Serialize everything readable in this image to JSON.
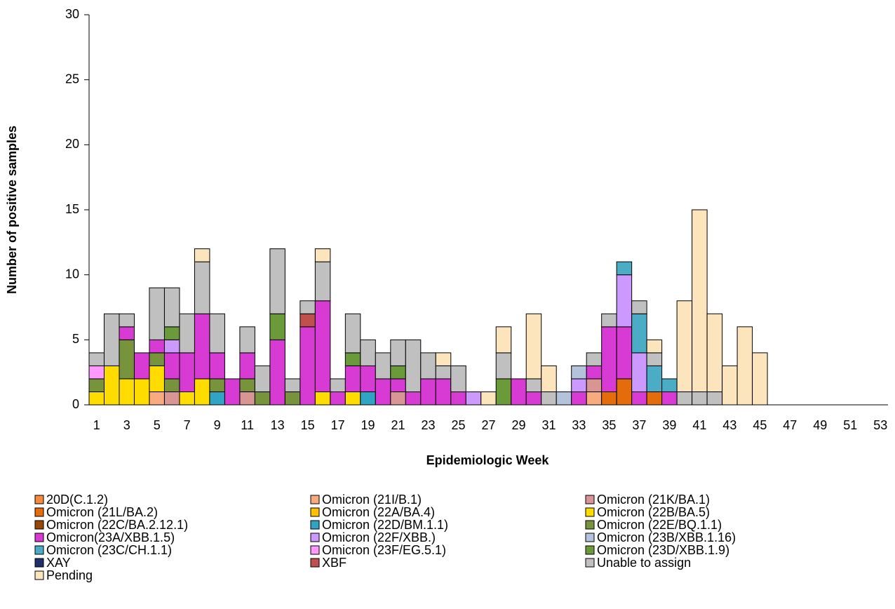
{
  "chart_data": {
    "type": "stacked_bar",
    "x_label": "Epidemiologic Week",
    "y_label": "Number of positive samples",
    "categories": [
      1,
      null,
      3,
      null,
      5,
      null,
      7,
      null,
      9,
      null,
      11,
      null,
      13,
      null,
      15,
      null,
      17,
      null,
      19,
      null,
      21,
      null,
      23,
      null,
      25,
      null,
      27,
      null,
      29,
      null,
      31,
      null,
      33,
      null,
      35,
      null,
      37,
      null,
      39,
      null,
      41,
      null,
      43,
      null,
      45,
      null,
      47,
      null,
      49,
      null,
      51,
      null,
      53
    ],
    "ylim": [
      0,
      30
    ],
    "yticks": [
      0,
      5,
      10,
      15,
      20,
      25,
      30
    ],
    "legend": "bottom",
    "series": [
      {
        "name": "20D(C.1.2)",
        "color": "#f58a3c",
        "values": [
          0,
          0,
          0,
          0,
          0,
          0,
          0,
          0,
          0,
          0,
          0,
          0,
          0,
          0,
          0,
          0,
          0,
          0,
          0,
          0,
          0,
          0,
          0,
          0,
          0,
          0,
          0,
          0,
          0,
          0,
          0,
          0,
          0,
          0,
          0,
          0,
          0,
          0,
          0,
          0,
          0,
          0,
          0,
          0,
          0,
          0,
          0,
          0,
          0,
          0,
          0,
          0,
          0
        ]
      },
      {
        "name": "Omicron (21I/B.1)",
        "color": "#f7ab7e",
        "values": [
          0,
          0,
          0,
          0,
          1,
          0,
          0,
          0,
          0,
          0,
          0,
          0,
          0,
          0,
          0,
          0,
          0,
          0,
          0,
          0,
          0,
          0,
          0,
          0,
          0,
          0,
          0,
          0,
          0,
          0,
          0,
          0,
          0,
          1,
          0,
          0,
          0,
          0,
          0,
          0,
          0,
          0,
          0,
          0,
          0,
          0,
          0,
          0,
          0,
          0,
          0,
          0,
          0
        ]
      },
      {
        "name": "Omicron (21K/BA.1)",
        "color": "#d99594",
        "values": [
          0,
          0,
          0,
          0,
          0,
          1,
          0,
          0,
          0,
          0,
          1,
          0,
          0,
          0,
          0,
          0,
          0,
          0,
          0,
          0,
          1,
          0,
          0,
          0,
          0,
          0,
          0,
          0,
          0,
          0,
          0,
          0,
          0,
          1,
          0,
          0,
          0,
          0,
          0,
          0,
          0,
          0,
          0,
          0,
          0,
          0,
          0,
          0,
          0,
          0,
          0,
          0,
          0
        ]
      },
      {
        "name": "Omicron (21L/BA.2)",
        "color": "#e46c0a",
        "values": [
          0,
          0,
          0,
          0,
          0,
          0,
          0,
          0,
          0,
          0,
          0,
          0,
          0,
          0,
          0,
          0,
          0,
          0,
          0,
          0,
          0,
          0,
          0,
          0,
          0,
          0,
          0,
          0,
          0,
          0,
          0,
          0,
          0,
          0,
          1,
          2,
          0,
          1,
          0,
          0,
          0,
          0,
          0,
          0,
          0,
          0,
          0,
          0,
          0,
          0,
          0,
          0,
          0
        ]
      },
      {
        "name": "Omicron (22A/BA.4)",
        "color": "#ffc000",
        "values": [
          0,
          0,
          0,
          0,
          0,
          0,
          0,
          0,
          0,
          0,
          0,
          0,
          0,
          0,
          0,
          0,
          0,
          0,
          0,
          0,
          0,
          0,
          0,
          0,
          0,
          0,
          0,
          0,
          0,
          0,
          0,
          0,
          0,
          0,
          0,
          0,
          0,
          0,
          0,
          0,
          0,
          0,
          0,
          0,
          0,
          0,
          0,
          0,
          0,
          0,
          0,
          0,
          0
        ]
      },
      {
        "name": "Omicron (22B/BA.5)",
        "color": "#ffdc00",
        "values": [
          1,
          3,
          2,
          2,
          2,
          0,
          1,
          2,
          0,
          0,
          0,
          0,
          0,
          0,
          0,
          1,
          0,
          1,
          0,
          0,
          0,
          0,
          0,
          0,
          0,
          0,
          0,
          0,
          0,
          0,
          0,
          0,
          0,
          0,
          0,
          0,
          0,
          0,
          0,
          0,
          0,
          0,
          0,
          0,
          0,
          0,
          0,
          0,
          0,
          0,
          0,
          0,
          0
        ]
      },
      {
        "name": "Omicron (22C/BA.2.12.1)",
        "color": "#974706",
        "values": [
          0,
          0,
          0,
          0,
          0,
          0,
          0,
          0,
          0,
          0,
          0,
          0,
          0,
          0,
          0,
          0,
          0,
          0,
          0,
          0,
          0,
          0,
          0,
          0,
          0,
          0,
          0,
          0,
          0,
          0,
          0,
          0,
          0,
          0,
          0,
          0,
          0,
          0,
          0,
          0,
          0,
          0,
          0,
          0,
          0,
          0,
          0,
          0,
          0,
          0,
          0,
          0,
          0
        ]
      },
      {
        "name": "Omicron (22D/BM.1.1)",
        "color": "#31a3c4",
        "values": [
          0,
          0,
          0,
          0,
          0,
          0,
          0,
          0,
          1,
          0,
          0,
          0,
          0,
          0,
          0,
          0,
          0,
          0,
          1,
          0,
          0,
          0,
          0,
          0,
          0,
          0,
          0,
          0,
          0,
          0,
          0,
          0,
          0,
          0,
          0,
          0,
          0,
          0,
          0,
          0,
          0,
          0,
          0,
          0,
          0,
          0,
          0,
          0,
          0,
          0,
          0,
          0,
          0
        ]
      },
      {
        "name": "Omicron (22E/BQ.1.1)",
        "color": "#77933c",
        "values": [
          1,
          0,
          3,
          0,
          1,
          1,
          0,
          0,
          1,
          0,
          1,
          1,
          0,
          1,
          0,
          0,
          0,
          0,
          0,
          0,
          0,
          0,
          0,
          0,
          0,
          0,
          0,
          0,
          0,
          0,
          0,
          0,
          0,
          0,
          0,
          0,
          0,
          0,
          0,
          0,
          0,
          0,
          0,
          0,
          0,
          0,
          0,
          0,
          0,
          0,
          0,
          0,
          0
        ]
      },
      {
        "name": "Omicron(23A/XBB.1.5)",
        "color": "#d73bd3",
        "values": [
          0,
          0,
          1,
          2,
          1,
          2,
          3,
          5,
          2,
          2,
          2,
          0,
          5,
          0,
          6,
          7,
          1,
          2,
          2,
          2,
          1,
          1,
          2,
          2,
          1,
          0,
          0,
          0,
          2,
          1,
          0,
          0,
          1,
          1,
          5,
          4,
          1,
          0,
          1,
          0,
          0,
          0,
          0,
          0,
          0,
          0,
          0,
          0,
          0,
          0,
          0,
          0,
          0
        ]
      },
      {
        "name": "Omicron (22F/XBB.)",
        "color": "#cc99ff",
        "values": [
          0,
          0,
          0,
          0,
          0,
          1,
          0,
          0,
          0,
          0,
          0,
          0,
          0,
          0,
          0,
          0,
          0,
          0,
          0,
          0,
          0,
          0,
          0,
          0,
          0,
          1,
          0,
          0,
          0,
          0,
          0,
          0,
          1,
          0,
          0,
          4,
          3,
          0,
          0,
          0,
          0,
          0,
          0,
          0,
          0,
          0,
          0,
          0,
          0,
          0,
          0,
          0,
          0
        ]
      },
      {
        "name": "Omicron (23B/XBB.1.16)",
        "color": "#b4c3dc",
        "values": [
          0,
          0,
          0,
          0,
          0,
          0,
          0,
          0,
          0,
          0,
          0,
          0,
          0,
          0,
          0,
          0,
          0,
          0,
          0,
          0,
          0,
          0,
          0,
          0,
          0,
          0,
          0,
          0,
          0,
          0,
          0,
          1,
          1,
          0,
          0,
          0,
          0,
          0,
          0,
          0,
          0,
          0,
          0,
          0,
          0,
          0,
          0,
          0,
          0,
          0,
          0,
          0,
          0
        ]
      },
      {
        "name": "Omicron (23C/CH.1.1)",
        "color": "#4bacc6",
        "values": [
          0,
          0,
          0,
          0,
          0,
          0,
          0,
          0,
          0,
          0,
          0,
          0,
          0,
          0,
          0,
          0,
          0,
          0,
          0,
          0,
          0,
          0,
          0,
          0,
          0,
          0,
          0,
          0,
          0,
          0,
          0,
          0,
          0,
          0,
          0,
          1,
          3,
          2,
          1,
          0,
          0,
          0,
          0,
          0,
          0,
          0,
          0,
          0,
          0,
          0,
          0,
          0,
          0
        ]
      },
      {
        "name": "Omicron (23F/EG.5.1)",
        "color": "#ff99ff",
        "values": [
          1,
          0,
          0,
          0,
          0,
          0,
          0,
          0,
          0,
          0,
          0,
          0,
          0,
          0,
          0,
          0,
          0,
          0,
          0,
          0,
          0,
          0,
          0,
          0,
          0,
          0,
          0,
          0,
          0,
          0,
          0,
          0,
          0,
          0,
          0,
          0,
          0,
          0,
          0,
          0,
          0,
          0,
          0,
          0,
          0,
          0,
          0,
          0,
          0,
          0,
          0,
          0,
          0
        ]
      },
      {
        "name": "Omicron (23D/XBB.1.9)",
        "color": "#6a9a3a",
        "values": [
          0,
          0,
          0,
          0,
          0,
          1,
          0,
          0,
          0,
          0,
          0,
          0,
          2,
          0,
          0,
          0,
          0,
          1,
          0,
          0,
          1,
          0,
          0,
          0,
          0,
          0,
          0,
          2,
          0,
          0,
          0,
          0,
          0,
          0,
          0,
          0,
          0,
          0,
          0,
          0,
          0,
          0,
          0,
          0,
          0,
          0,
          0,
          0,
          0,
          0,
          0,
          0,
          0
        ]
      },
      {
        "name": "XAY",
        "color": "#1f2f6b",
        "values": [
          0,
          0,
          0,
          0,
          0,
          0,
          0,
          0,
          0,
          0,
          0,
          0,
          0,
          0,
          0,
          0,
          0,
          0,
          0,
          0,
          0,
          0,
          0,
          0,
          0,
          0,
          0,
          0,
          0,
          0,
          0,
          0,
          0,
          0,
          0,
          0,
          0,
          0,
          0,
          0,
          0,
          0,
          0,
          0,
          0,
          0,
          0,
          0,
          0,
          0,
          0,
          0,
          0
        ]
      },
      {
        "name": "XBF",
        "color": "#c0504d",
        "values": [
          0,
          0,
          0,
          0,
          0,
          0,
          0,
          0,
          0,
          0,
          0,
          0,
          0,
          0,
          1,
          0,
          0,
          0,
          0,
          0,
          0,
          0,
          0,
          0,
          0,
          0,
          0,
          0,
          0,
          0,
          0,
          0,
          0,
          0,
          0,
          0,
          0,
          0,
          0,
          0,
          0,
          0,
          0,
          0,
          0,
          0,
          0,
          0,
          0,
          0,
          0,
          0,
          0
        ]
      },
      {
        "name": "Unable to assign",
        "color": "#c0c0c0",
        "values": [
          1,
          4,
          1,
          0,
          4,
          3,
          3,
          4,
          3,
          0,
          2,
          2,
          5,
          1,
          1,
          3,
          1,
          3,
          2,
          2,
          2,
          4,
          2,
          1,
          2,
          0,
          0,
          2,
          0,
          1,
          1,
          0,
          0,
          1,
          1,
          0,
          1,
          1,
          0,
          1,
          1,
          1,
          0,
          0,
          0,
          0,
          0,
          0,
          0,
          0,
          0,
          0,
          0
        ]
      },
      {
        "name": "Pending",
        "color": "#fce4bd",
        "values": [
          0,
          0,
          0,
          0,
          0,
          0,
          0,
          1,
          0,
          0,
          0,
          0,
          0,
          0,
          0,
          1,
          0,
          0,
          0,
          0,
          0,
          0,
          0,
          1,
          0,
          0,
          1,
          2,
          0,
          5,
          2,
          0,
          0,
          0,
          0,
          0,
          0,
          1,
          0,
          7,
          14,
          6,
          3,
          6,
          4,
          0,
          0,
          0,
          0,
          0,
          0,
          0,
          0
        ]
      }
    ]
  }
}
